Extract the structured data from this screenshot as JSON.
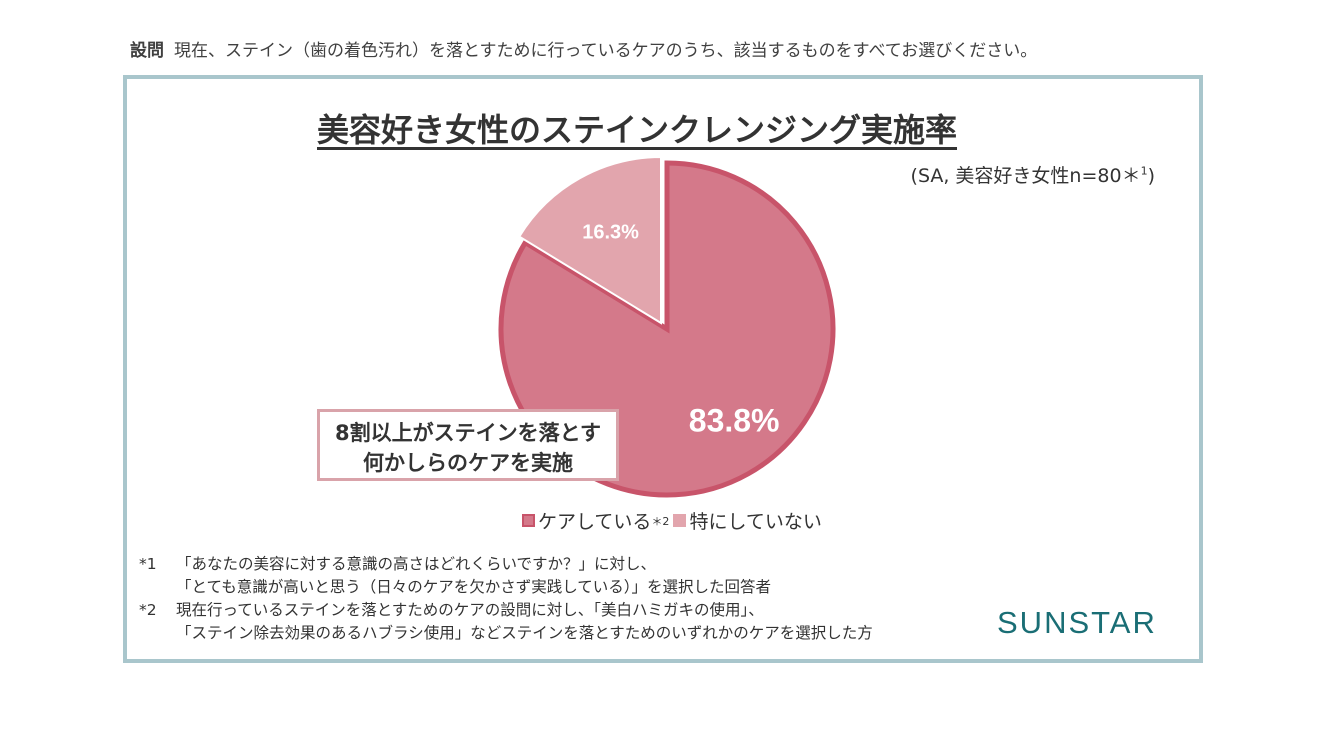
{
  "question": {
    "label": "設問",
    "text": "現在、ステイン（歯の着色汚れ）を落とすために行っているケアのうち、該当するものをすべてお選びください。"
  },
  "chart_data": {
    "type": "pie",
    "title": "美容好き女性のステインクレンジング実施率",
    "sample_note": "(SA, 美容好き女性n=80＊",
    "sample_note_sup": "1",
    "sample_note_close": ")",
    "slices": [
      {
        "name": "ケアしている",
        "legend_sup": "＊2",
        "value": 83.8,
        "label": "83.8%",
        "color": "#d4798a",
        "stroke": "#c8546a"
      },
      {
        "name": "特にしていない",
        "value": 16.3,
        "label": "16.3%",
        "color": "#e2a5ad",
        "stroke": "#ffffff"
      }
    ],
    "start_angle_deg": 0,
    "legend_position": "bottom"
  },
  "callout": {
    "line1": "8割以上がステインを落とす",
    "line2": "何かしらのケアを実施"
  },
  "notes": [
    {
      "mark": "*1",
      "lines": [
        "「あなたの美容に対する意識の高さはどれくらいですか？」に対し、",
        "「とても意識が高いと思う（日々のケアを欠かさず実践している）」を選択した回答者"
      ]
    },
    {
      "mark": "*2",
      "lines": [
        "現在行っているステインを落とすためのケアの設問に対し、「美白ハミガキの使用」、",
        "「ステイン除去効果のあるハブラシ使用」などステインを落とすためのいずれかのケアを選択した方"
      ]
    }
  ],
  "brand": "SUNSTAR"
}
